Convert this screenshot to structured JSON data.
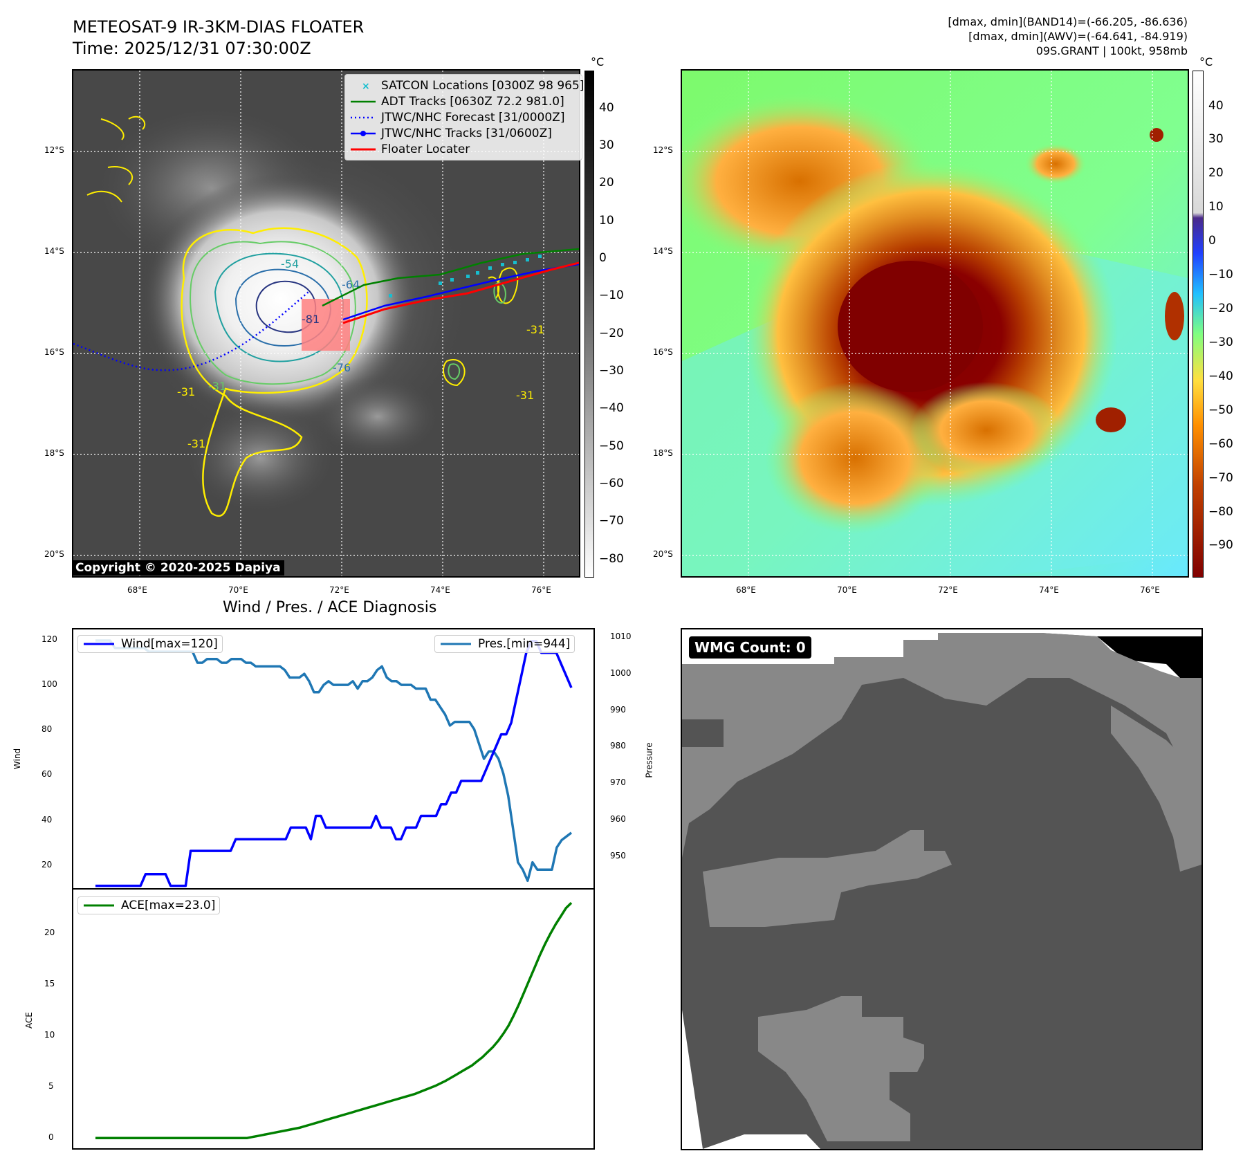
{
  "ir_panel": {
    "title_line1": "METEOSAT-9 IR-3KM-DIAS FLOATER",
    "title_line2": "Time: 2025/12/31 07:30:00Z",
    "colorbar_unit": "°C",
    "colorbar_ticks": [
      "40",
      "30",
      "20",
      "10",
      "0",
      "−10",
      "−20",
      "−30",
      "−40",
      "−50",
      "−60",
      "−70",
      "−80"
    ],
    "lat_labels": [
      "12°S",
      "14°S",
      "16°S",
      "18°S",
      "20°S"
    ],
    "lon_labels": [
      "68°E",
      "70°E",
      "72°E",
      "74°E",
      "76°E"
    ],
    "contour_labels": [
      "-54",
      "-64",
      "-76",
      "-81",
      "-31",
      "-31",
      "-31",
      "-31",
      "-31"
    ],
    "copyright": "Copyright © 2020-2025 Dapiya",
    "legend": {
      "satcon": "SATCON Locations [0300Z 98 965]",
      "adt": "ADT Tracks [0630Z 72.2 981.0]",
      "forecast": "JTWC/NHC Forecast [31/0000Z]",
      "tracks": "JTWC/NHC Tracks [31/0600Z]",
      "floater": "Floater Locater"
    }
  },
  "awv_panel": {
    "info_line1": "[dmax, dmin](BAND14)=(-66.205, -86.636)",
    "info_line2": "[dmax, dmin](AWV)=(-64.641, -84.919)",
    "info_line3": "09S.GRANT | 100kt, 958mb",
    "colorbar_unit": "°C",
    "colorbar_ticks": [
      "40",
      "30",
      "20",
      "10",
      "0",
      "−10",
      "−20",
      "−30",
      "−40",
      "−50",
      "−60",
      "−70",
      "−80",
      "−90"
    ],
    "lat_labels": [
      "12°S",
      "14°S",
      "16°S",
      "18°S",
      "20°S"
    ],
    "lon_labels": [
      "68°E",
      "70°E",
      "72°E",
      "74°E",
      "76°E"
    ]
  },
  "diagnosis": {
    "title": "Wind / Pres. / ACE Diagnosis",
    "wind_axis_label": "Wind",
    "pressure_axis_label": "Pressure",
    "ace_axis_label": "ACE",
    "wind_legend": "Wind[max=120]",
    "pres_legend": "Pres.[min=944]",
    "ace_legend": "ACE[max=23.0]",
    "wind_ticks": [
      "20",
      "40",
      "60",
      "80",
      "100",
      "120"
    ],
    "pres_ticks": [
      "950",
      "960",
      "970",
      "980",
      "990",
      "1000",
      "1010"
    ],
    "ace_ticks": [
      "0",
      "5",
      "10",
      "15",
      "20"
    ]
  },
  "wmg_panel": {
    "label": "WMG Count: 0",
    "colors": {
      "black": "#000000",
      "dark": "#545454",
      "light": "#888888",
      "white": "#ffffff"
    }
  },
  "colors": {
    "wind": "#0000ff",
    "pressure": "#1f77b4",
    "ace": "#008000",
    "track_red": "#ff0000",
    "adt_green": "#008000",
    "satcon": "#17becf"
  },
  "chart_data": [
    {
      "type": "line",
      "title": "Wind / Pres. / ACE Diagnosis",
      "ylabel": "Wind",
      "ylim": [
        14,
        125
      ],
      "series": [
        {
          "name": "Wind[max=120]",
          "values": [
            15,
            15,
            15,
            15,
            15,
            15,
            15,
            15,
            15,
            15,
            20,
            20,
            20,
            20,
            20,
            15,
            15,
            15,
            15,
            30,
            30,
            30,
            30,
            30,
            30,
            30,
            30,
            30,
            35,
            35,
            35,
            35,
            35,
            35,
            35,
            35,
            35,
            35,
            35,
            40,
            40,
            40,
            40,
            35,
            45,
            45,
            40,
            40,
            40,
            40,
            40,
            40,
            40,
            40,
            40,
            40,
            45,
            40,
            40,
            40,
            35,
            35,
            40,
            40,
            40,
            45,
            45,
            45,
            45,
            50,
            50,
            55,
            55,
            60,
            60,
            60,
            60,
            60,
            65,
            70,
            75,
            80,
            80,
            85,
            95,
            105,
            115,
            120,
            120,
            115,
            115,
            115,
            115,
            110,
            105,
            100
          ]
        }
      ]
    },
    {
      "type": "line",
      "ylabel": "Pressure",
      "ylim": [
        942,
        1012
      ],
      "series": [
        {
          "name": "Pres.[min=944]",
          "values": [
            1009,
            1009,
            1009,
            1009,
            1007,
            1007,
            1007,
            1007,
            1007,
            1007,
            1007,
            1006,
            1006,
            1006,
            1006,
            1006,
            1006,
            1006,
            1006,
            1006,
            1006,
            1003,
            1003,
            1004,
            1004,
            1004,
            1003,
            1003,
            1004,
            1004,
            1004,
            1003,
            1003,
            1002,
            1002,
            1002,
            1002,
            1002,
            1002,
            1001,
            999,
            999,
            999,
            1000,
            998,
            995,
            995,
            997,
            998,
            997,
            997,
            997,
            997,
            998,
            996,
            998,
            998,
            999,
            1001,
            1002,
            999,
            998,
            998,
            997,
            997,
            997,
            996,
            996,
            996,
            993,
            993,
            991,
            989,
            986,
            987,
            987,
            987,
            987,
            985,
            981,
            977,
            979,
            979,
            977,
            973,
            967,
            958,
            949,
            947,
            944,
            949,
            947,
            947,
            947,
            947,
            953,
            955,
            956,
            957
          ]
        }
      ]
    },
    {
      "type": "line",
      "ylabel": "ACE",
      "ylim": [
        -1,
        24.3
      ],
      "series": [
        {
          "name": "ACE[max=23.0]",
          "values": [
            0,
            0,
            0,
            0,
            0,
            0,
            0,
            0,
            0,
            0,
            0,
            0,
            0,
            0,
            0,
            0,
            0,
            0,
            0,
            0,
            0,
            0,
            0,
            0,
            0,
            0,
            0,
            0,
            0,
            0,
            0.1,
            0.2,
            0.3,
            0.4,
            0.5,
            0.6,
            0.7,
            0.8,
            0.9,
            1.0,
            1.15,
            1.3,
            1.45,
            1.6,
            1.75,
            1.9,
            2.05,
            2.2,
            2.35,
            2.5,
            2.65,
            2.8,
            2.95,
            3.1,
            3.25,
            3.4,
            3.55,
            3.7,
            3.85,
            4.0,
            4.15,
            4.3,
            4.5,
            4.7,
            4.9,
            5.1,
            5.35,
            5.6,
            5.9,
            6.2,
            6.5,
            6.8,
            7.1,
            7.5,
            7.9,
            8.4,
            8.9,
            9.5,
            10.2,
            11.0,
            12.0,
            13.1,
            14.3,
            15.5,
            16.7,
            17.9,
            19.0,
            20.0,
            20.9,
            21.7,
            22.5,
            23.0
          ]
        }
      ]
    }
  ]
}
